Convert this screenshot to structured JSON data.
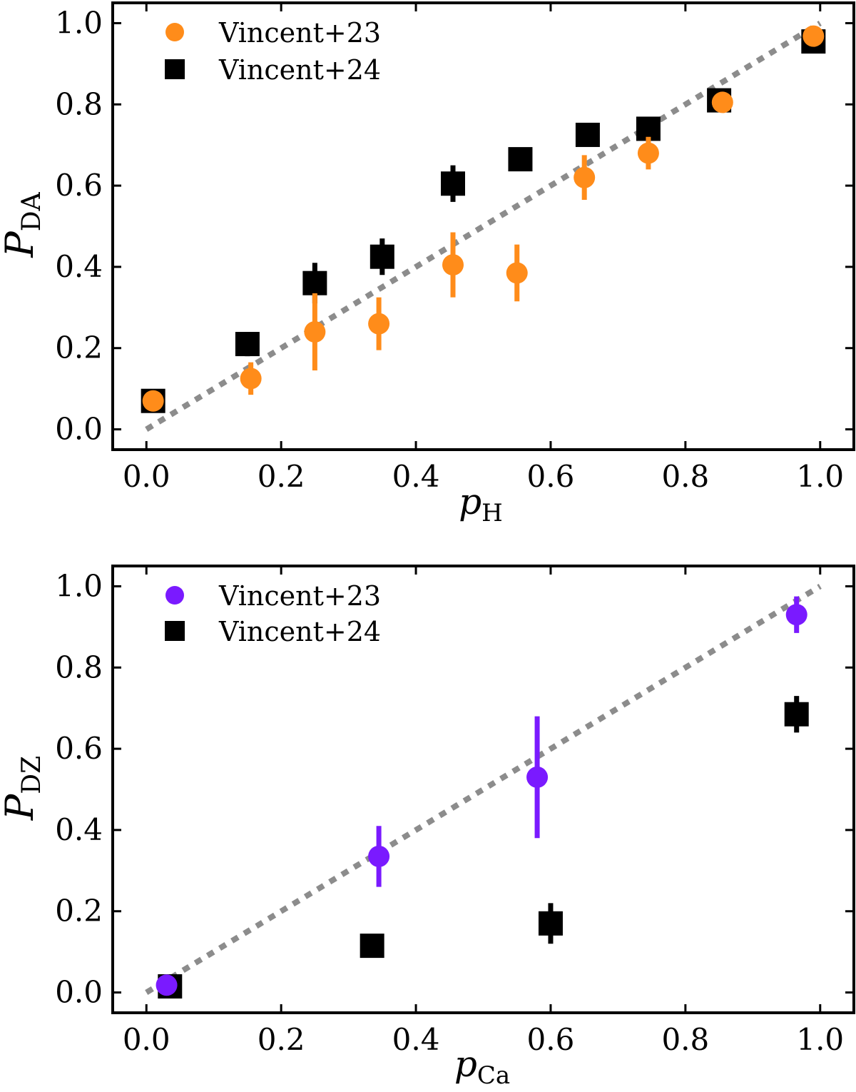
{
  "chart_data": [
    {
      "type": "scatter",
      "title": "",
      "xlabel": "p_H",
      "xlabel_main": "p",
      "xlabel_sub": "H",
      "ylabel": "P_DA",
      "ylabel_main": "P",
      "ylabel_sub": "DA",
      "xlim": [
        -0.05,
        1.05
      ],
      "ylim": [
        -0.05,
        1.05
      ],
      "xticks": [
        0.0,
        0.2,
        0.4,
        0.6,
        0.8,
        1.0
      ],
      "yticks": [
        0.0,
        0.2,
        0.4,
        0.6,
        0.8,
        1.0
      ],
      "xtick_labels": [
        "0.0",
        "0.2",
        "0.4",
        "0.6",
        "0.8",
        "1.0"
      ],
      "ytick_labels": [
        "0.0",
        "0.2",
        "0.4",
        "0.6",
        "0.8",
        "1.0"
      ],
      "reference_line": {
        "style": "dotted",
        "color": "#8c8c8c",
        "from": [
          0,
          0
        ],
        "to": [
          1,
          1
        ]
      },
      "legend_position": "top-left",
      "series": [
        {
          "name": "Vincent+24",
          "marker": "square",
          "color": "#000000",
          "points": [
            {
              "x": 0.01,
              "y": 0.07,
              "err": 0.0
            },
            {
              "x": 0.15,
              "y": 0.21,
              "err": 0.03
            },
            {
              "x": 0.25,
              "y": 0.36,
              "err": 0.05
            },
            {
              "x": 0.35,
              "y": 0.425,
              "err": 0.045
            },
            {
              "x": 0.455,
              "y": 0.605,
              "err": 0.045
            },
            {
              "x": 0.555,
              "y": 0.665,
              "err": 0.025
            },
            {
              "x": 0.655,
              "y": 0.725,
              "err": 0.02
            },
            {
              "x": 0.745,
              "y": 0.74,
              "err": 0.02
            },
            {
              "x": 0.85,
              "y": 0.81,
              "err": 0.02
            },
            {
              "x": 0.99,
              "y": 0.955,
              "err": 0.0
            }
          ]
        },
        {
          "name": "Vincent+23",
          "marker": "circle",
          "color": "#ff8c1a",
          "points": [
            {
              "x": 0.01,
              "y": 0.07,
              "err": 0.0
            },
            {
              "x": 0.155,
              "y": 0.125,
              "err": 0.04
            },
            {
              "x": 0.25,
              "y": 0.24,
              "err": 0.095
            },
            {
              "x": 0.345,
              "y": 0.26,
              "err": 0.065
            },
            {
              "x": 0.455,
              "y": 0.405,
              "err": 0.08
            },
            {
              "x": 0.55,
              "y": 0.385,
              "err": 0.07
            },
            {
              "x": 0.65,
              "y": 0.62,
              "err": 0.055
            },
            {
              "x": 0.745,
              "y": 0.68,
              "err": 0.04
            },
            {
              "x": 0.855,
              "y": 0.805,
              "err": 0.025
            },
            {
              "x": 0.99,
              "y": 0.968,
              "err": 0.0
            }
          ]
        }
      ]
    },
    {
      "type": "scatter",
      "title": "",
      "xlabel": "p_Ca",
      "xlabel_main": "p",
      "xlabel_sub": "Ca",
      "ylabel": "P_DZ",
      "ylabel_main": "P",
      "ylabel_sub": "DZ",
      "xlim": [
        -0.05,
        1.05
      ],
      "ylim": [
        -0.05,
        1.05
      ],
      "xticks": [
        0.0,
        0.2,
        0.4,
        0.6,
        0.8,
        1.0
      ],
      "yticks": [
        0.0,
        0.2,
        0.4,
        0.6,
        0.8,
        1.0
      ],
      "xtick_labels": [
        "0.0",
        "0.2",
        "0.4",
        "0.6",
        "0.8",
        "1.0"
      ],
      "ytick_labels": [
        "0.0",
        "0.2",
        "0.4",
        "0.6",
        "0.8",
        "1.0"
      ],
      "reference_line": {
        "style": "dotted",
        "color": "#8c8c8c",
        "from": [
          0,
          0
        ],
        "to": [
          1,
          1
        ]
      },
      "legend_position": "top-left",
      "series": [
        {
          "name": "Vincent+24",
          "marker": "square",
          "color": "#000000",
          "points": [
            {
              "x": 0.035,
              "y": 0.015,
              "err": 0.0
            },
            {
              "x": 0.335,
              "y": 0.115,
              "err": 0.0
            },
            {
              "x": 0.6,
              "y": 0.17,
              "err": 0.05
            },
            {
              "x": 0.965,
              "y": 0.685,
              "err": 0.045
            }
          ]
        },
        {
          "name": "Vincent+23",
          "marker": "circle",
          "color": "#7a1aff",
          "points": [
            {
              "x": 0.03,
              "y": 0.018,
              "err": 0.0
            },
            {
              "x": 0.345,
              "y": 0.335,
              "err": 0.075
            },
            {
              "x": 0.58,
              "y": 0.53,
              "err": 0.15
            },
            {
              "x": 0.965,
              "y": 0.93,
              "err": 0.045
            }
          ]
        }
      ]
    }
  ]
}
